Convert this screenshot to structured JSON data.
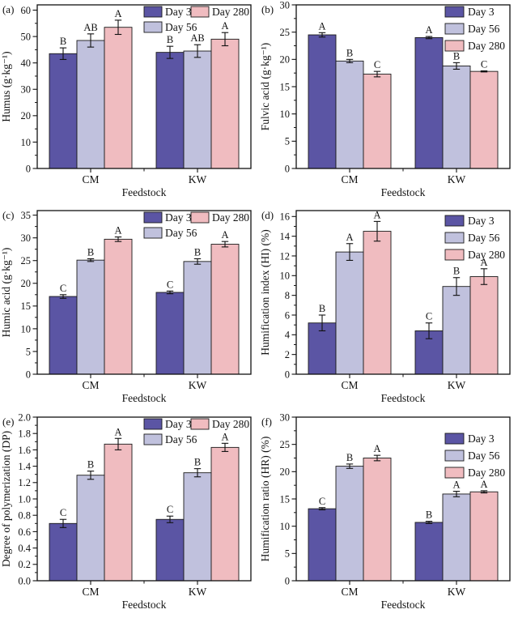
{
  "figure": {
    "xlabel": "Feedstock",
    "categories": [
      "CM",
      "KW"
    ],
    "series_colors": {
      "Day 3": "#5b55a4",
      "Day 56": "#c0c1dd",
      "Day 280": "#f0bcc0"
    },
    "axis_color": "#111111",
    "background": "#ffffff"
  },
  "chart_data": [
    {
      "type": "bar",
      "panel": "(a)",
      "ylabel": "Humus (g·kg⁻¹)",
      "xlabel": "Feedstock",
      "categories": [
        "CM",
        "KW"
      ],
      "ylim": [
        0,
        62
      ],
      "ytick_max": 60,
      "ytick_step": 10,
      "ytick_decimals": 0,
      "grid": false,
      "legend": {
        "layout": "two-col",
        "y": 8
      },
      "series": [
        {
          "name": "Day 3",
          "color": "#5b55a4",
          "values": [
            43.5,
            44.0
          ],
          "errors": [
            2.2,
            2.3
          ],
          "letters": [
            "B",
            "B"
          ]
        },
        {
          "name": "Day 56",
          "color": "#c0c1dd",
          "values": [
            48.5,
            44.5
          ],
          "errors": [
            2.5,
            2.4
          ],
          "letters": [
            "AB",
            "AB"
          ]
        },
        {
          "name": "Day 280",
          "color": "#f0bcc0",
          "values": [
            53.5,
            49.0
          ],
          "errors": [
            2.7,
            2.5
          ],
          "letters": [
            "A",
            "A"
          ]
        }
      ]
    },
    {
      "type": "bar",
      "panel": "(b)",
      "ylabel": "Fulvic acid (g·kg⁻¹)",
      "xlabel": "Feedstock",
      "categories": [
        "CM",
        "KW"
      ],
      "ylim": [
        0,
        30
      ],
      "ytick_max": 30,
      "ytick_step": 5,
      "ytick_decimals": 0,
      "grid": false,
      "legend": {
        "layout": "vertical",
        "y": 8
      },
      "series": [
        {
          "name": "Day 3",
          "color": "#5b55a4",
          "values": [
            24.5,
            24.0
          ],
          "errors": [
            0.4,
            0.2
          ],
          "letters": [
            "A",
            "A"
          ]
        },
        {
          "name": "Day 56",
          "color": "#c0c1dd",
          "values": [
            19.7,
            18.8
          ],
          "errors": [
            0.3,
            0.6
          ],
          "letters": [
            "B",
            "B"
          ]
        },
        {
          "name": "Day 280",
          "color": "#f0bcc0",
          "values": [
            17.3,
            17.8
          ],
          "errors": [
            0.5,
            0.1
          ],
          "letters": [
            "C",
            "C"
          ]
        }
      ]
    },
    {
      "type": "bar",
      "panel": "(c)",
      "ylabel": "Humic acid (g·kg⁻¹)",
      "xlabel": "Feedstock",
      "categories": [
        "CM",
        "KW"
      ],
      "ylim": [
        0,
        36
      ],
      "ytick_max": 35,
      "ytick_step": 5,
      "ytick_decimals": 0,
      "grid": false,
      "legend": {
        "layout": "two-col",
        "y": 8
      },
      "series": [
        {
          "name": "Day 3",
          "color": "#5b55a4",
          "values": [
            17.1,
            18.0
          ],
          "errors": [
            0.4,
            0.3
          ],
          "letters": [
            "C",
            "C"
          ]
        },
        {
          "name": "Day 56",
          "color": "#c0c1dd",
          "values": [
            25.1,
            24.8
          ],
          "errors": [
            0.3,
            0.6
          ],
          "letters": [
            "B",
            "B"
          ]
        },
        {
          "name": "Day 280",
          "color": "#f0bcc0",
          "values": [
            29.7,
            28.6
          ],
          "errors": [
            0.5,
            0.6
          ],
          "letters": [
            "A",
            "A"
          ]
        }
      ]
    },
    {
      "type": "bar",
      "panel": "(d)",
      "ylabel": "Humification index (HI) (%)",
      "xlabel": "Feedstock",
      "categories": [
        "CM",
        "KW"
      ],
      "ylim": [
        0,
        16.6
      ],
      "ytick_max": 16,
      "ytick_step": 2,
      "ytick_decimals": 0,
      "grid": false,
      "legend": {
        "layout": "vertical",
        "y": 12
      },
      "series": [
        {
          "name": "Day 3",
          "color": "#5b55a4",
          "values": [
            5.2,
            4.4
          ],
          "errors": [
            0.8,
            0.8
          ],
          "letters": [
            "B",
            "C"
          ]
        },
        {
          "name": "Day 56",
          "color": "#c0c1dd",
          "values": [
            12.4,
            8.9
          ],
          "errors": [
            0.85,
            0.9
          ],
          "letters": [
            "A",
            "B"
          ]
        },
        {
          "name": "Day 280",
          "color": "#f0bcc0",
          "values": [
            14.5,
            9.9
          ],
          "errors": [
            1.0,
            0.8
          ],
          "letters": [
            "A",
            "A"
          ]
        }
      ]
    },
    {
      "type": "bar",
      "panel": "(e)",
      "ylabel": "Degree of polymerization (DP)",
      "xlabel": "Feedstock",
      "categories": [
        "CM",
        "KW"
      ],
      "ylim": [
        0,
        2.0
      ],
      "ytick_max": 2.0,
      "ytick_step": 0.2,
      "ytick_decimals": 1,
      "grid": false,
      "legend": {
        "layout": "two-col",
        "y": 8
      },
      "series": [
        {
          "name": "Day 3",
          "color": "#5b55a4",
          "values": [
            0.7,
            0.75
          ],
          "errors": [
            0.05,
            0.04
          ],
          "letters": [
            "C",
            "C"
          ]
        },
        {
          "name": "Day 56",
          "color": "#c0c1dd",
          "values": [
            1.29,
            1.32
          ],
          "errors": [
            0.05,
            0.05
          ],
          "letters": [
            "B",
            "B"
          ]
        },
        {
          "name": "Day 280",
          "color": "#f0bcc0",
          "values": [
            1.67,
            1.63
          ],
          "errors": [
            0.07,
            0.05
          ],
          "letters": [
            "A",
            "A"
          ]
        }
      ]
    },
    {
      "type": "bar",
      "panel": "(f)",
      "ylabel": "Humification ratio (HR) (%)",
      "xlabel": "Feedstock",
      "categories": [
        "CM",
        "KW"
      ],
      "ylim": [
        0,
        30
      ],
      "ytick_max": 30,
      "ytick_step": 5,
      "ytick_decimals": 0,
      "grid": false,
      "legend": {
        "layout": "vertical",
        "y": 26
      },
      "series": [
        {
          "name": "Day 3",
          "color": "#5b55a4",
          "values": [
            13.2,
            10.7
          ],
          "errors": [
            0.2,
            0.2
          ],
          "letters": [
            "C",
            "B"
          ]
        },
        {
          "name": "Day 56",
          "color": "#c0c1dd",
          "values": [
            21.0,
            15.9
          ],
          "errors": [
            0.4,
            0.5
          ],
          "letters": [
            "B",
            "A"
          ]
        },
        {
          "name": "Day 280",
          "color": "#f0bcc0",
          "values": [
            22.5,
            16.3
          ],
          "errors": [
            0.5,
            0.2
          ],
          "letters": [
            "A",
            "A"
          ]
        }
      ]
    }
  ]
}
